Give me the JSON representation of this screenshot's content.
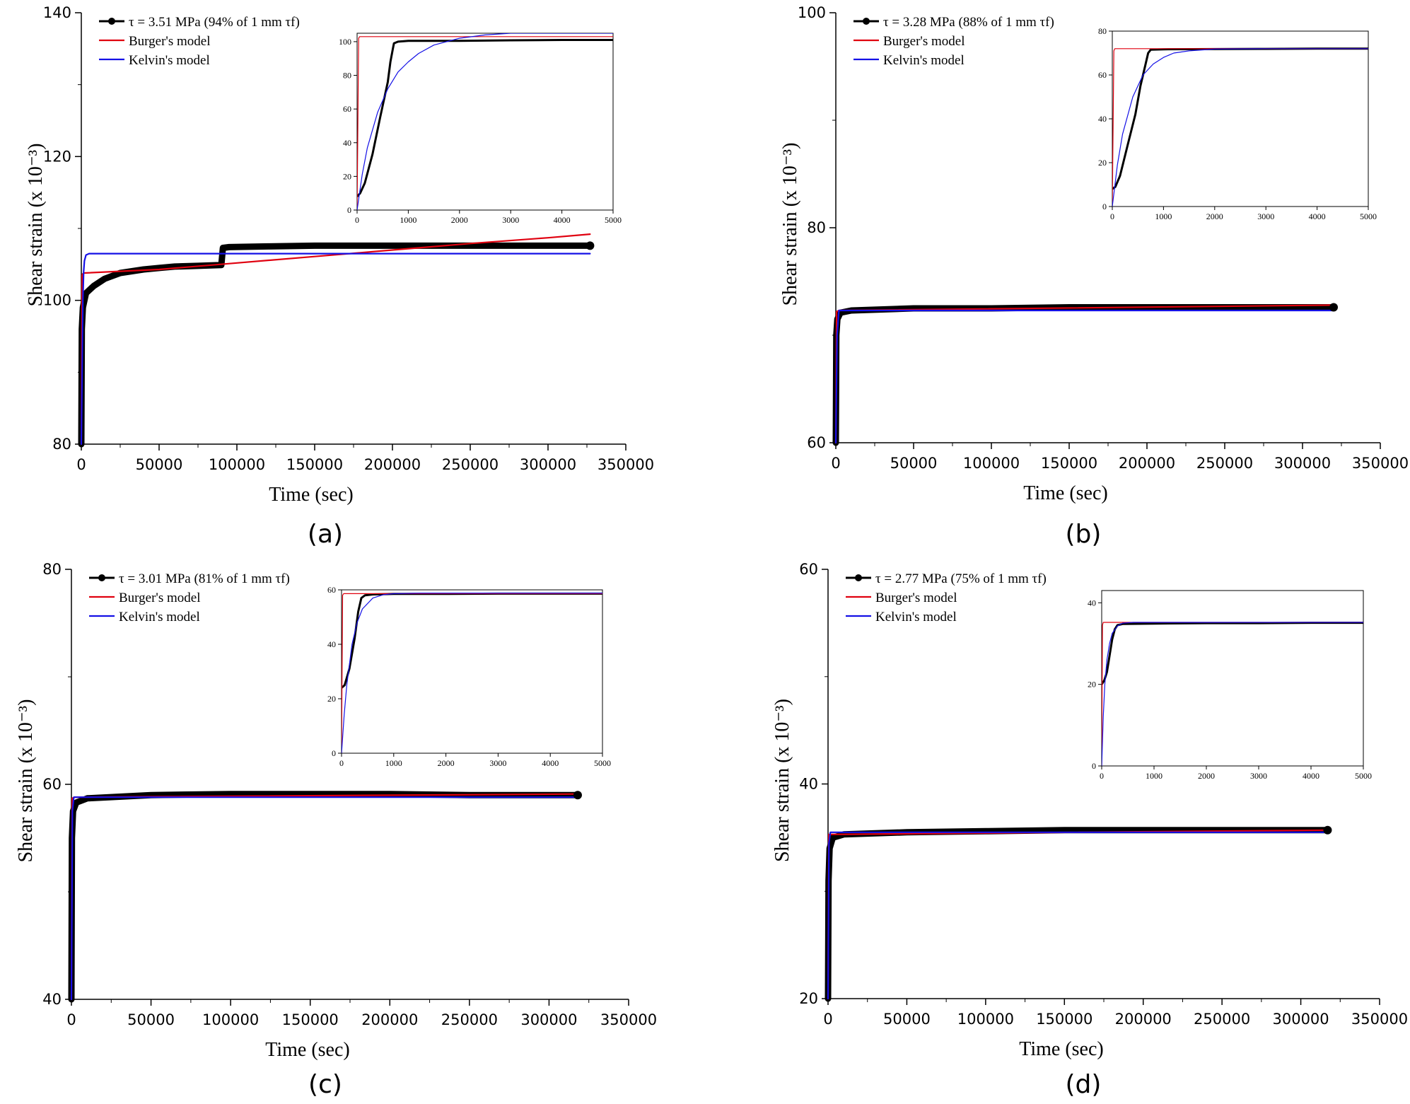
{
  "colors": {
    "data": "#000000",
    "burger": "#e0000f",
    "kelvin": "#1410e6",
    "axis": "#000000"
  },
  "chart_data": [
    {
      "type": "line",
      "panel_label": "(a)",
      "xlabel": "Time (sec)",
      "ylabel": "Shear strain (x 10⁻³)",
      "xlim": [
        0,
        350000
      ],
      "ylim": [
        80,
        140
      ],
      "xticks": [
        0,
        50000,
        100000,
        150000,
        200000,
        250000,
        300000,
        350000
      ],
      "xtick_labels": [
        "0",
        "50000",
        "100000",
        "150000",
        "200000",
        "250000",
        "300000",
        "350000"
      ],
      "yticks": [
        80,
        100,
        120,
        140
      ],
      "ytick_labels": [
        "80",
        "100",
        "120",
        "140"
      ],
      "legend": [
        "τ = 3.51 MPa (94% of 1 mm τf)",
        "Burger's model",
        "Kelvin's model"
      ],
      "series": [
        {
          "name": "τ = 3.51 MPa (94% of 1 mm τf)",
          "x": [
            0,
            300,
            1000,
            3000,
            8000,
            15000,
            25000,
            40000,
            50000,
            60000,
            75000,
            90000,
            91000,
            95000,
            120000,
            150000,
            200000,
            250000,
            300000,
            327000
          ],
          "y": [
            80,
            96,
            99,
            101,
            102,
            103,
            103.8,
            104.3,
            104.5,
            104.7,
            104.8,
            104.9,
            107.3,
            107.4,
            107.5,
            107.6,
            107.6,
            107.6,
            107.6,
            107.6
          ]
        },
        {
          "name": "Burger's model",
          "x": [
            0,
            500,
            1000,
            2000,
            50000,
            100000,
            150000,
            200000,
            250000,
            300000,
            327000
          ],
          "y": [
            80,
            103.5,
            103.7,
            103.8,
            104.3,
            105.2,
            106.1,
            107.0,
            107.9,
            108.7,
            109.2
          ]
        },
        {
          "name": "Kelvin's model",
          "x": [
            0,
            1000,
            1500,
            2000,
            3000,
            5000,
            100000,
            200000,
            327000
          ],
          "y": [
            80,
            100,
            104,
            105.5,
            106.3,
            106.5,
            106.5,
            106.5,
            106.5
          ]
        }
      ],
      "inset": {
        "xlim": [
          0,
          5000
        ],
        "ylim": [
          0,
          105
        ],
        "xticks": [
          0,
          1000,
          2000,
          3000,
          4000,
          5000
        ],
        "xtick_labels": [
          "0",
          "1000",
          "2000",
          "3000",
          "4000",
          "5000"
        ],
        "yticks": [
          0,
          20,
          40,
          60,
          80,
          100
        ],
        "ytick_labels": [
          "0",
          "20",
          "40",
          "60",
          "80",
          "100"
        ],
        "series": [
          {
            "name": "data",
            "x": [
              0,
              60,
              150,
              300,
              450,
              600,
              650,
              700,
              720,
              800,
              1000,
              2000,
              3000,
              4000,
              5000
            ],
            "y": [
              8,
              10,
              16,
              33,
              55,
              76,
              88,
              96,
              99,
              100,
              100.5,
              100.5,
              100.8,
              101,
              101
            ]
          },
          {
            "name": "Burger's model",
            "x": [
              0,
              30,
              50,
              5000
            ],
            "y": [
              0,
              102,
              103,
              103
            ]
          },
          {
            "name": "Kelvin's model",
            "x": [
              0,
              100,
              200,
              400,
              600,
              800,
              1000,
              1200,
              1500,
              2000,
              2500,
              3000,
              4000,
              5000
            ],
            "y": [
              0,
              21,
              37,
              58,
              72,
              82,
              88,
              93,
              98,
              102,
              104,
              105,
              105,
              105
            ]
          }
        ]
      }
    },
    {
      "type": "line",
      "panel_label": "(b)",
      "xlabel": "Time (sec)",
      "ylabel": "Shear strain (x 10⁻³)",
      "xlim": [
        0,
        350000
      ],
      "ylim": [
        60,
        100
      ],
      "xticks": [
        0,
        50000,
        100000,
        150000,
        200000,
        250000,
        300000,
        350000
      ],
      "xtick_labels": [
        "0",
        "50000",
        "100000",
        "150000",
        "200000",
        "250000",
        "300000",
        "350000"
      ],
      "yticks": [
        60,
        80,
        100
      ],
      "ytick_labels": [
        "60",
        "80",
        "100"
      ],
      "legend": [
        "τ = 3.28 MPa (88% of 1 mm τf)",
        "Burger's model",
        "Kelvin's model"
      ],
      "series": [
        {
          "name": "τ = 3.28 MPa (88% of 1 mm τf)",
          "x": [
            0,
            300,
            1000,
            3000,
            10000,
            50000,
            100000,
            150000,
            200000,
            250000,
            300000,
            320000
          ],
          "y": [
            60,
            70,
            71.5,
            72.1,
            72.3,
            72.5,
            72.5,
            72.6,
            72.6,
            72.6,
            72.6,
            72.6
          ]
        },
        {
          "name": "Burger's model",
          "x": [
            0,
            500,
            2000,
            320000
          ],
          "y": [
            60,
            72.2,
            72.3,
            72.8
          ]
        },
        {
          "name": "Kelvin's model",
          "x": [
            0,
            800,
            2000,
            320000
          ],
          "y": [
            60,
            70,
            72.3,
            72.3
          ]
        }
      ],
      "inset": {
        "xlim": [
          0,
          5000
        ],
        "ylim": [
          0,
          80
        ],
        "xticks": [
          0,
          1000,
          2000,
          3000,
          4000,
          5000
        ],
        "xtick_labels": [
          "0",
          "1000",
          "2000",
          "3000",
          "4000",
          "5000"
        ],
        "yticks": [
          0,
          20,
          40,
          60,
          80
        ],
        "ytick_labels": [
          "0",
          "20",
          "40",
          "60",
          "80"
        ],
        "series": [
          {
            "name": "data",
            "x": [
              0,
              60,
              150,
              300,
              450,
              550,
              650,
              700,
              750,
              1000,
              2000,
              3000,
              4000,
              5000
            ],
            "y": [
              8,
              9,
              14,
              28,
              42,
              55,
              65,
              70,
              71.5,
              71.7,
              71.8,
              71.9,
              72,
              72
            ]
          },
          {
            "name": "Burger's model",
            "x": [
              0,
              30,
              50,
              5000
            ],
            "y": [
              0,
              71,
              72,
              72
            ]
          },
          {
            "name": "Kelvin's model",
            "x": [
              0,
              100,
              200,
              400,
              600,
              800,
              1000,
              1200,
              1500,
              2000,
              3000,
              5000
            ],
            "y": [
              0,
              19,
              33,
              50,
              60,
              65,
              68,
              70,
              71,
              71.8,
              72,
              72
            ]
          }
        ]
      }
    },
    {
      "type": "line",
      "panel_label": "(c)",
      "xlabel": "Time (sec)",
      "ylabel": "Shear strain (x 10⁻³)",
      "xlim": [
        0,
        350000
      ],
      "ylim": [
        40,
        80
      ],
      "xticks": [
        0,
        50000,
        100000,
        150000,
        200000,
        250000,
        300000,
        350000
      ],
      "xtick_labels": [
        "0",
        "50000",
        "100000",
        "150000",
        "200000",
        "250000",
        "300000",
        "350000"
      ],
      "yticks": [
        40,
        60,
        80
      ],
      "ytick_labels": [
        "40",
        "60",
        "80"
      ],
      "legend": [
        "τ = 3.01 MPa (81% of 1 mm τf)",
        "Burger's model",
        "Kelvin's model"
      ],
      "series": [
        {
          "name": "τ = 3.01 MPa (81% of 1 mm τf)",
          "x": [
            0,
            300,
            1000,
            3000,
            10000,
            50000,
            100000,
            150000,
            200000,
            250000,
            300000,
            318000
          ],
          "y": [
            40,
            55,
            57.5,
            58.3,
            58.7,
            59,
            59.1,
            59.1,
            59.1,
            59,
            59,
            59
          ]
        },
        {
          "name": "Burger's model",
          "x": [
            0,
            500,
            2000,
            318000
          ],
          "y": [
            40,
            58.7,
            58.8,
            59.1
          ]
        },
        {
          "name": "Kelvin's model",
          "x": [
            0,
            600,
            1500,
            318000
          ],
          "y": [
            40,
            57.5,
            58.8,
            58.8
          ]
        }
      ],
      "inset": {
        "xlim": [
          0,
          5000
        ],
        "ylim": [
          0,
          60
        ],
        "xticks": [
          0,
          1000,
          2000,
          3000,
          4000,
          5000
        ],
        "xtick_labels": [
          "0",
          "1000",
          "2000",
          "3000",
          "4000",
          "5000"
        ],
        "yticks": [
          0,
          20,
          40,
          60
        ],
        "ytick_labels": [
          "0",
          "20",
          "40",
          "60"
        ],
        "series": [
          {
            "name": "data",
            "x": [
              0,
              60,
              150,
              250,
              320,
              380,
              450,
              600,
              1000,
              2000,
              3000,
              4000,
              5000
            ],
            "y": [
              24,
              25,
              31,
              42,
              52,
              57,
              58,
              58.3,
              58.5,
              58.5,
              58.6,
              58.6,
              58.6
            ]
          },
          {
            "name": "Burger's model",
            "x": [
              0,
              20,
              40,
              5000
            ],
            "y": [
              0,
              58,
              58.6,
              58.6
            ]
          },
          {
            "name": "Kelvin's model",
            "x": [
              0,
              50,
              100,
              200,
              300,
              400,
              600,
              800,
              1000,
              1500,
              5000
            ],
            "y": [
              0,
              14,
              25,
              40,
              48,
              53,
              57,
              58.2,
              58.6,
              58.8,
              58.8
            ]
          }
        ]
      }
    },
    {
      "type": "line",
      "panel_label": "(d)",
      "xlabel": "Time (sec)",
      "ylabel": "Shear strain (x 10⁻³)",
      "xlim": [
        0,
        350000
      ],
      "ylim": [
        20,
        60
      ],
      "xticks": [
        0,
        50000,
        100000,
        150000,
        200000,
        250000,
        300000,
        350000
      ],
      "xtick_labels": [
        "0",
        "50000",
        "100000",
        "150000",
        "200000",
        "250000",
        "300000",
        "350000"
      ],
      "yticks": [
        20,
        40,
        60
      ],
      "ytick_labels": [
        "20",
        "40",
        "60"
      ],
      "legend": [
        "τ = 2.77 MPa (75% of 1 mm τf)",
        "Burger's model",
        "Kelvin's model"
      ],
      "series": [
        {
          "name": "τ = 2.77 MPa (75% of 1 mm τf)",
          "x": [
            0,
            300,
            1000,
            3000,
            10000,
            50000,
            100000,
            150000,
            200000,
            250000,
            300000,
            317000
          ],
          "y": [
            20,
            31,
            34,
            35,
            35.3,
            35.5,
            35.6,
            35.7,
            35.7,
            35.7,
            35.7,
            35.7
          ]
        },
        {
          "name": "Burger's model",
          "x": [
            0,
            500,
            2000,
            317000
          ],
          "y": [
            20,
            35.3,
            35.3,
            35.7
          ]
        },
        {
          "name": "Kelvin's model",
          "x": [
            0,
            600,
            1500,
            317000
          ],
          "y": [
            20,
            34.5,
            35.5,
            35.5
          ]
        }
      ],
      "inset": {
        "xlim": [
          0,
          5000
        ],
        "ylim": [
          0,
          43
        ],
        "xticks": [
          0,
          1000,
          2000,
          3000,
          4000,
          5000
        ],
        "xtick_labels": [
          "0",
          "1000",
          "2000",
          "3000",
          "4000",
          "5000"
        ],
        "yticks": [
          0,
          20,
          40
        ],
        "ytick_labels": [
          "0",
          "20",
          "40"
        ],
        "series": [
          {
            "name": "data",
            "x": [
              0,
              50,
              100,
              150,
              200,
              250,
              300,
              400,
              1000,
              2000,
              3000,
              4000,
              5000
            ],
            "y": [
              20,
              21,
              23,
              27,
              31,
              33.5,
              34.5,
              34.8,
              34.9,
              35,
              35,
              35.1,
              35.1
            ]
          },
          {
            "name": "Burger's model",
            "x": [
              0,
              15,
              30,
              5000
            ],
            "y": [
              0,
              34.5,
              35.2,
              35.2
            ]
          },
          {
            "name": "Kelvin's model",
            "x": [
              0,
              30,
              60,
              100,
              150,
              200,
              300,
              400,
              600,
              5000
            ],
            "y": [
              0,
              12,
              20,
              26,
              30,
              32.5,
              34.3,
              35,
              35.2,
              35.2
            ]
          }
        ]
      }
    }
  ]
}
